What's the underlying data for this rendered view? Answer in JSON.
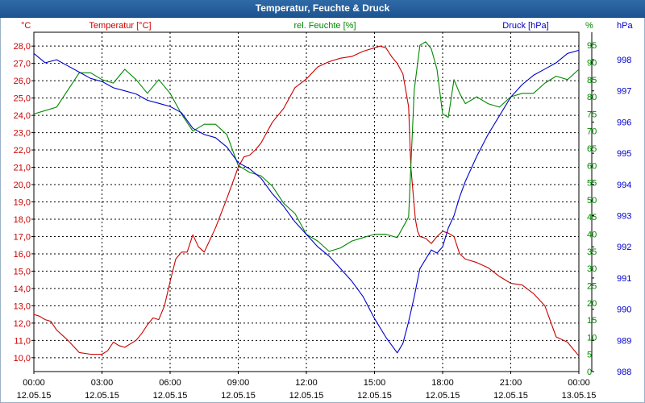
{
  "window": {
    "title": "Temperatur, Feuchte & Druck"
  },
  "colors": {
    "temperature": "#cc0000",
    "humidity": "#008800",
    "pressure": "#0000cc",
    "grid": "#000000",
    "text": "#000000"
  },
  "chart_data": {
    "type": "line",
    "title": "Temperatur, Feuchte & Druck",
    "x": {
      "unit": "hours since 12.05.15 00:00",
      "range": [
        0,
        24
      ],
      "ticks": [
        {
          "time": "00:00",
          "date": "12.05.15"
        },
        {
          "time": "03:00",
          "date": "12.05.15"
        },
        {
          "time": "06:00",
          "date": "12.05.15"
        },
        {
          "time": "09:00",
          "date": "12.05.15"
        },
        {
          "time": "12:00",
          "date": "12.05.15"
        },
        {
          "time": "15:00",
          "date": "12.05.15"
        },
        {
          "time": "18:00",
          "date": "12.05.15"
        },
        {
          "time": "21:00",
          "date": "12.05.15"
        },
        {
          "time": "00:00",
          "date": "13.05.15"
        }
      ]
    },
    "axes": {
      "left": {
        "unit_label": "°C",
        "title": "Temperatur [°C]",
        "range": [
          9.2,
          28.8
        ],
        "ticks": [
          "10,0",
          "11,0",
          "12,0",
          "13,0",
          "14,0",
          "15,0",
          "16,0",
          "17,0",
          "18,0",
          "19,0",
          "20,0",
          "21,0",
          "22,0",
          "23,0",
          "24,0",
          "25,0",
          "26,0",
          "27,0",
          "28,0"
        ]
      },
      "middle": {
        "unit_label": "%",
        "title": "rel. Feuchte [%]",
        "range": [
          0,
          98.8
        ],
        "ticks": [
          "0",
          "5",
          "10",
          "15",
          "20",
          "25",
          "30",
          "35",
          "40",
          "45",
          "50",
          "55",
          "60",
          "65",
          "70",
          "75",
          "80",
          "85",
          "90",
          "95"
        ]
      },
      "right": {
        "unit_label": "hPa",
        "title": "Druck [hPa]",
        "range": [
          988,
          998.88
        ],
        "ticks": [
          "988",
          "989",
          "990",
          "991",
          "992",
          "993",
          "994",
          "995",
          "996",
          "997",
          "998"
        ]
      }
    },
    "series": [
      {
        "name": "Temperatur [°C]",
        "axis": "left",
        "x": [
          0,
          0.25,
          0.5,
          0.75,
          1,
          1.5,
          2,
          2.5,
          3,
          3.25,
          3.5,
          3.75,
          4,
          4.5,
          4.75,
          5,
          5.25,
          5.5,
          5.75,
          6,
          6.25,
          6.5,
          6.75,
          7,
          7.25,
          7.5,
          8,
          8.5,
          9,
          9.25,
          9.5,
          9.75,
          10,
          10.5,
          11,
          11.5,
          12,
          12.5,
          13,
          13.5,
          14,
          14.5,
          15,
          15.25,
          15.5,
          15.75,
          16,
          16.25,
          16.5,
          16.6,
          16.7,
          16.8,
          16.9,
          17,
          17.25,
          17.5,
          17.75,
          18,
          18.25,
          18.5,
          18.75,
          19,
          19.5,
          20,
          20.5,
          21,
          21.5,
          22,
          22.5,
          23,
          23.5,
          24
        ],
        "values": [
          12.5,
          12.4,
          12.2,
          12.1,
          11.6,
          11.0,
          10.3,
          10.2,
          10.2,
          10.4,
          10.9,
          10.7,
          10.6,
          11.0,
          11.4,
          11.9,
          12.3,
          12.2,
          13.0,
          14.4,
          15.7,
          16.1,
          16.1,
          17.1,
          16.4,
          16.1,
          17.5,
          19.2,
          21.0,
          21.6,
          21.7,
          22.0,
          22.4,
          23.6,
          24.4,
          25.6,
          26.1,
          26.8,
          27.1,
          27.3,
          27.4,
          27.7,
          27.9,
          28.0,
          27.9,
          27.4,
          27.0,
          26.4,
          24.5,
          21.0,
          19.5,
          18.0,
          17.3,
          17.0,
          16.9,
          16.6,
          17.0,
          17.3,
          17.2,
          17.0,
          16.0,
          15.7,
          15.5,
          15.2,
          14.7,
          14.3,
          14.2,
          13.7,
          13.0,
          11.2,
          10.9,
          10.1
        ]
      },
      {
        "name": "rel. Feuchte [%]",
        "axis": "middle",
        "x": [
          0,
          0.5,
          1,
          1.5,
          2,
          2.5,
          3,
          3.5,
          4,
          4.5,
          5,
          5.5,
          6,
          6.5,
          7,
          7.5,
          8,
          8.5,
          9,
          9.5,
          10,
          10.5,
          11,
          11.5,
          12,
          12.5,
          13,
          13.5,
          14,
          14.5,
          15,
          15.5,
          16,
          16.5,
          16.75,
          17,
          17.25,
          17.5,
          17.75,
          18,
          18.25,
          18.5,
          18.75,
          19,
          19.5,
          20,
          20.5,
          21,
          21.5,
          22,
          22.5,
          23,
          23.5,
          24
        ],
        "values": [
          75,
          76,
          77,
          82,
          87,
          87,
          85,
          84,
          88,
          85,
          81,
          85,
          81,
          75,
          70,
          72,
          72,
          69,
          60,
          58,
          57,
          54,
          49,
          46,
          40,
          38,
          35,
          36,
          38,
          39,
          40,
          40,
          39,
          45,
          82,
          95,
          96,
          94,
          88,
          75,
          74,
          85,
          81,
          78,
          80,
          78,
          77,
          80,
          81,
          81,
          84,
          86,
          85,
          88
        ]
      },
      {
        "name": "Druck [hPa]",
        "axis": "right",
        "x": [
          0,
          0.5,
          1,
          1.5,
          2,
          2.5,
          3,
          3.5,
          4,
          4.5,
          5,
          5.5,
          6,
          6.5,
          7,
          7.5,
          8,
          8.5,
          9,
          9.5,
          10,
          10.5,
          11,
          11.5,
          12,
          12.5,
          13,
          13.5,
          14,
          14.5,
          15,
          15.5,
          16,
          16.25,
          16.5,
          16.75,
          17,
          17.25,
          17.5,
          17.75,
          18,
          18.25,
          18.5,
          18.75,
          19,
          19.5,
          20,
          20.5,
          21,
          21.5,
          22,
          22.5,
          23,
          23.5,
          24
        ],
        "values": [
          998.2,
          997.9,
          998.0,
          997.8,
          997.6,
          997.4,
          997.3,
          997.1,
          997.0,
          996.9,
          996.7,
          996.6,
          996.5,
          996.3,
          995.8,
          995.6,
          995.5,
          995.2,
          994.7,
          994.5,
          994.2,
          993.7,
          993.3,
          992.8,
          992.4,
          992.0,
          991.7,
          991.3,
          990.9,
          990.4,
          989.7,
          989.1,
          988.6,
          988.9,
          989.6,
          990.4,
          991.3,
          991.6,
          991.9,
          991.8,
          992.0,
          992.6,
          993.0,
          993.6,
          994.1,
          994.9,
          995.6,
          996.2,
          996.8,
          997.2,
          997.5,
          997.7,
          997.9,
          998.2,
          998.3
        ]
      }
    ]
  }
}
